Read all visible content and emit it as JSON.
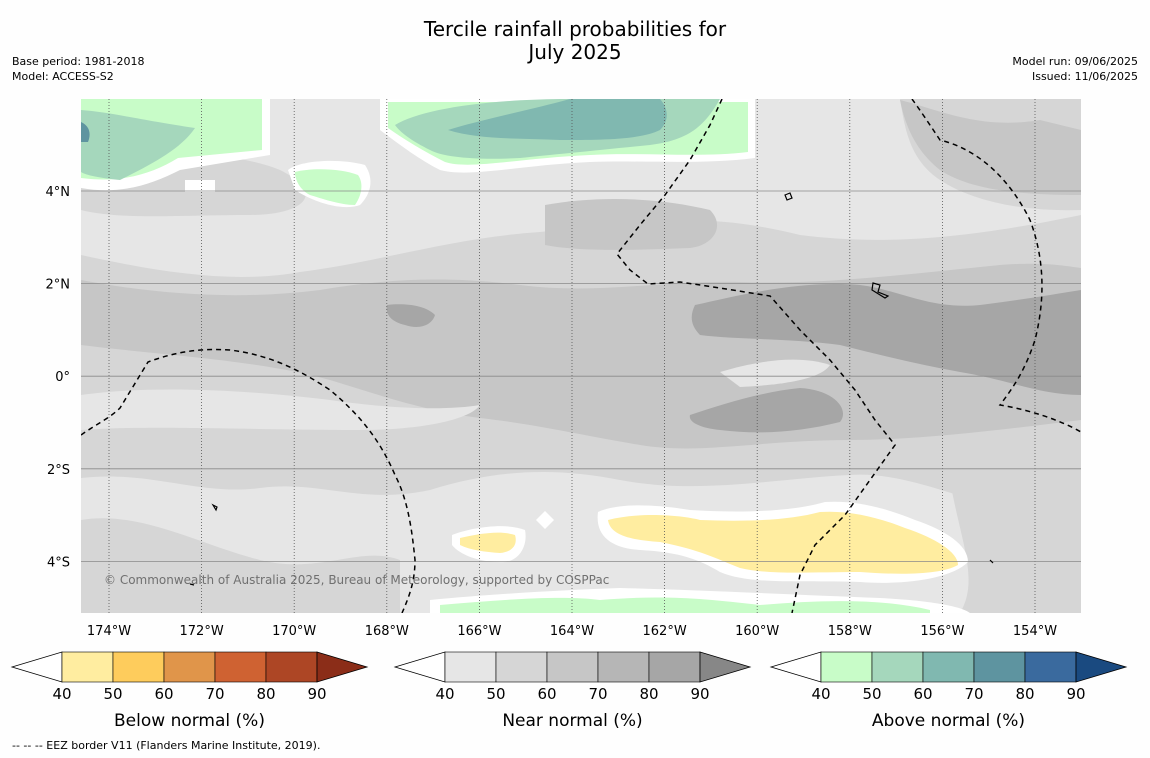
{
  "title_line1": "Tercile rainfall probabilities for",
  "title_line2": "July 2025",
  "meta_left": {
    "base_period": "Base period: 1981-2018",
    "model": "Model: ACCESS-S2"
  },
  "meta_right": {
    "model_run": "Model run: 09/06/2025",
    "issued": "Issued: 11/06/2025"
  },
  "map": {
    "lon_ticks": [
      "174°W",
      "172°W",
      "170°W",
      "168°W",
      "166°W",
      "164°W",
      "162°W",
      "160°W",
      "158°W",
      "156°W",
      "154°W"
    ],
    "lat_ticks": [
      "4°N",
      "2°N",
      "0°",
      "2°S",
      "4°S"
    ],
    "copyright": "© Commonwealth of Australia 2025, Bureau of Meteorology, supported by COSPPac"
  },
  "colorbars": [
    {
      "title": "Below normal (%)",
      "ticks": [
        "40",
        "50",
        "60",
        "70",
        "80",
        "90"
      ],
      "colors": [
        "#ffeda0",
        "#fecc5c",
        "#e0954a",
        "#cf6232",
        "#ad4625",
        "#8b2d18"
      ]
    },
    {
      "title": "Near normal (%)",
      "ticks": [
        "40",
        "50",
        "60",
        "70",
        "80",
        "90"
      ],
      "colors": [
        "#e6e6e6",
        "#d6d6d6",
        "#c6c6c6",
        "#b6b6b6",
        "#a6a6a6",
        "#878787"
      ]
    },
    {
      "title": "Above normal (%)",
      "ticks": [
        "40",
        "50",
        "60",
        "70",
        "80",
        "90"
      ],
      "colors": [
        "#c8fcc8",
        "#a5d7bc",
        "#80b8b0",
        "#5e94a0",
        "#3a6a9e",
        "#1a4a80"
      ]
    }
  ],
  "legend_note": "--  --  -- EEZ border V11 (Flanders Marine Institute, 2019).",
  "colors": {
    "near_normal_base": "#e6e6e6",
    "above_normal_low": "#c8fcc8",
    "below_normal_low": "#ffeda0"
  }
}
